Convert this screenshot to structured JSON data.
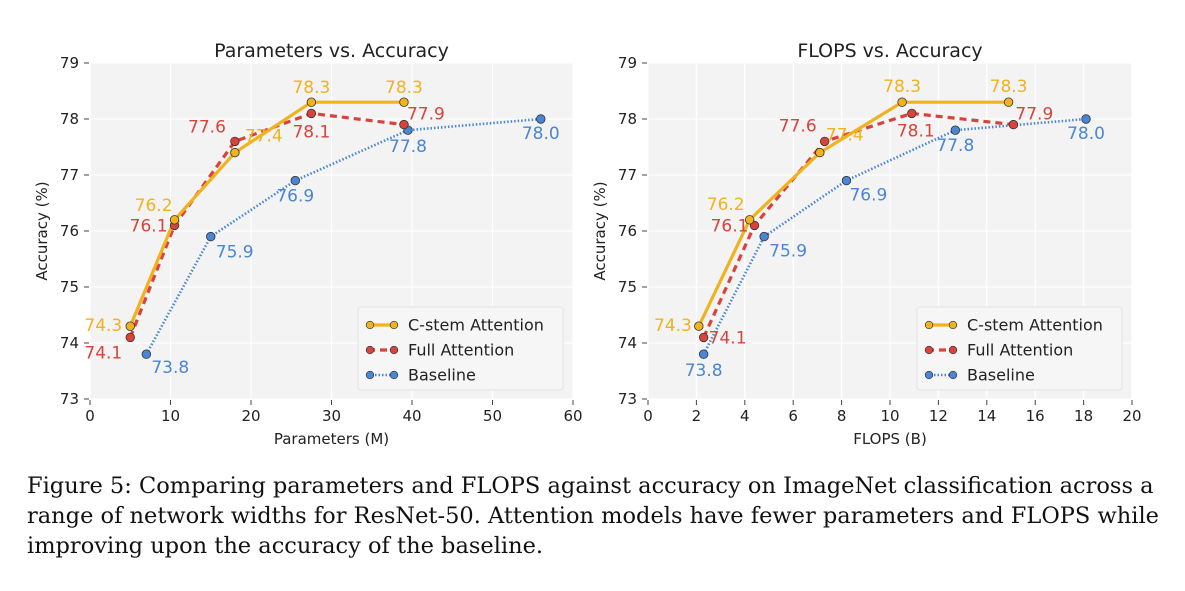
{
  "colors": {
    "cstem": "#f2b21e",
    "full": "#d9433b",
    "baseline": "#4a86d4",
    "plot_bg": "#f3f3f3",
    "grid": "#ffffff"
  },
  "chart_data": [
    {
      "type": "line",
      "title": "Parameters vs. Accuracy",
      "xlabel": "Parameters (M)",
      "ylabel": "Accuracy (%)",
      "xlim": [
        0,
        60
      ],
      "ylim": [
        73,
        79
      ],
      "xticks": [
        0,
        10,
        20,
        30,
        40,
        50,
        60
      ],
      "yticks": [
        73,
        74,
        75,
        76,
        77,
        78,
        79
      ],
      "xtick_labels": [
        "0",
        "10",
        "20",
        "30",
        "40",
        "50",
        "60"
      ],
      "ytick_labels": [
        "73",
        "74",
        "75",
        "76",
        "77",
        "78",
        "79"
      ],
      "legend": "lower-right",
      "series": [
        {
          "name": "C-stem Attention",
          "style": "solid",
          "x": [
            5,
            10.5,
            18,
            27.5,
            39
          ],
          "y": [
            74.3,
            76.2,
            77.4,
            78.3,
            78.3
          ],
          "labels": [
            "74.3",
            "76.2",
            "77.4",
            "78.3",
            "78.3"
          ]
        },
        {
          "name": "Full Attention",
          "style": "dashed",
          "x": [
            5,
            10.5,
            18,
            27.5,
            39
          ],
          "y": [
            74.1,
            76.1,
            77.6,
            78.1,
            77.9
          ],
          "labels": [
            "74.1",
            "76.1",
            "77.6",
            "78.1",
            "77.9"
          ]
        },
        {
          "name": "Baseline",
          "style": "dotted",
          "x": [
            7,
            15,
            25.5,
            39.5,
            56
          ],
          "y": [
            73.8,
            75.9,
            76.9,
            77.8,
            78.0
          ],
          "labels": [
            "73.8",
            "75.9",
            "76.9",
            "77.8",
            "78.0"
          ]
        }
      ]
    },
    {
      "type": "line",
      "title": "FLOPS vs. Accuracy",
      "xlabel": "FLOPS (B)",
      "ylabel": "Accuracy (%)",
      "xlim": [
        0,
        20
      ],
      "ylim": [
        73,
        79
      ],
      "xticks": [
        0,
        2,
        4,
        6,
        8,
        10,
        12,
        14,
        16,
        18,
        20
      ],
      "yticks": [
        73,
        74,
        75,
        76,
        77,
        78,
        79
      ],
      "xtick_labels": [
        "0",
        "2",
        "4",
        "6",
        "8",
        "10",
        "12",
        "14",
        "16",
        "18",
        "20"
      ],
      "ytick_labels": [
        "73",
        "74",
        "75",
        "76",
        "77",
        "78",
        "79"
      ],
      "legend": "lower-right",
      "series": [
        {
          "name": "C-stem Attention",
          "style": "solid",
          "x": [
            2.1,
            4.2,
            7.1,
            10.5,
            14.9
          ],
          "y": [
            74.3,
            76.2,
            77.4,
            78.3,
            78.3
          ],
          "labels": [
            "74.3",
            "76.2",
            "77.4",
            "78.3",
            "78.3"
          ]
        },
        {
          "name": "Full Attention",
          "style": "dashed",
          "x": [
            2.3,
            4.4,
            7.3,
            10.9,
            15.1
          ],
          "y": [
            74.1,
            76.1,
            77.6,
            78.1,
            77.9
          ],
          "labels": [
            "74.1",
            "76.1",
            "77.6",
            "78.1",
            "77.9"
          ]
        },
        {
          "name": "Baseline",
          "style": "dotted",
          "x": [
            2.3,
            4.8,
            8.2,
            12.7,
            18.1
          ],
          "y": [
            73.8,
            75.9,
            76.9,
            77.8,
            78.0
          ],
          "labels": [
            "73.8",
            "75.9",
            "76.9",
            "77.8",
            "78.0"
          ]
        }
      ]
    }
  ],
  "caption": {
    "text": "Figure 5: Comparing parameters and FLOPS against accuracy on ImageNet classification across a range of network widths for ResNet-50. Attention models have fewer parameters and FLOPS while improving upon the accuracy of the baseline."
  }
}
